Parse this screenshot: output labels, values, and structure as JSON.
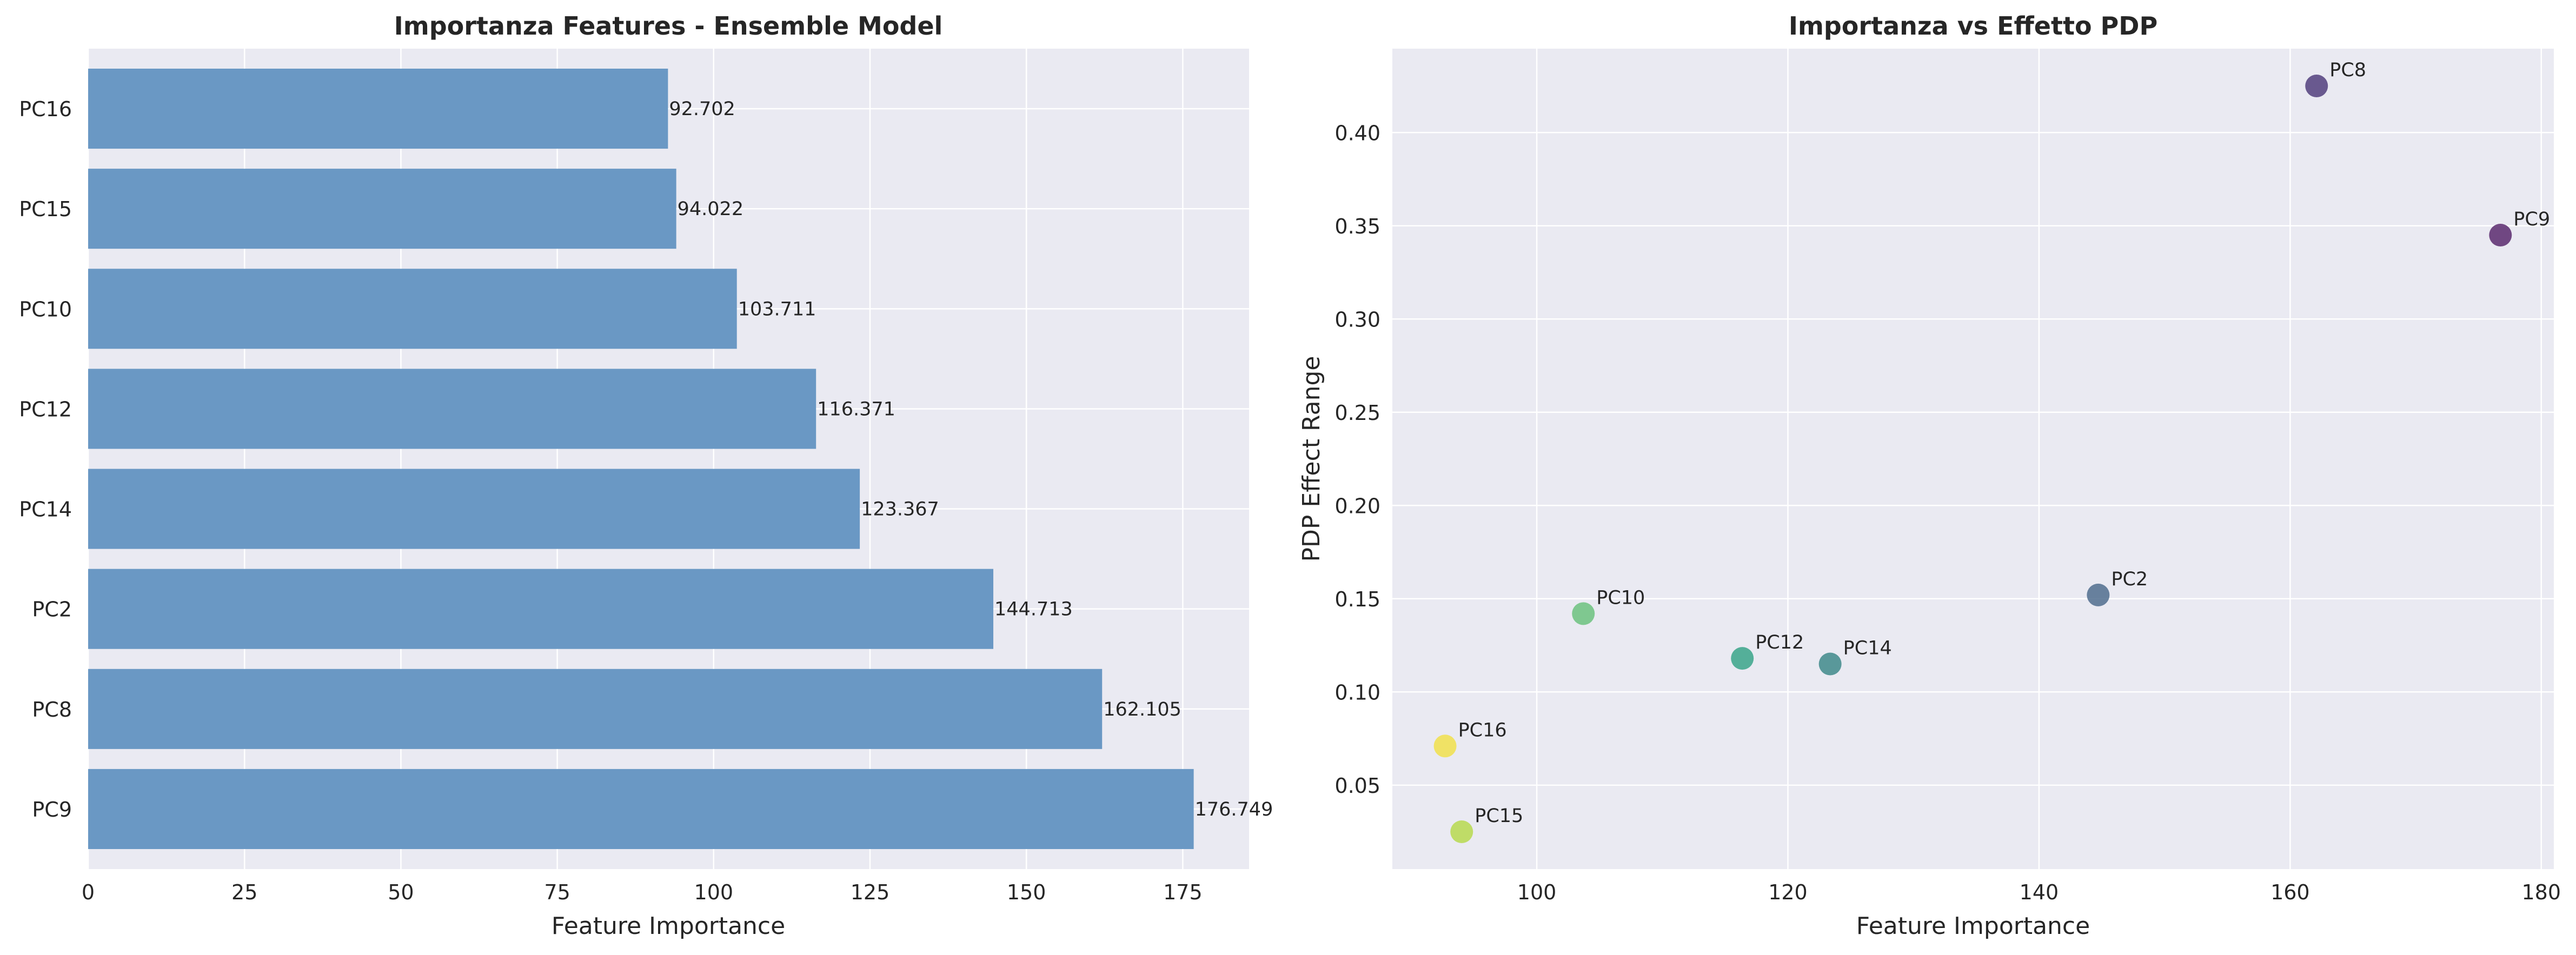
{
  "chart_data": [
    {
      "type": "bar",
      "orientation": "horizontal",
      "title": "Importanza Features - Ensemble Model",
      "xlabel": "Feature Importance",
      "ylabel": "",
      "categories": [
        "PC9",
        "PC8",
        "PC2",
        "PC14",
        "PC12",
        "PC10",
        "PC15",
        "PC16"
      ],
      "values": [
        176.749,
        162.105,
        144.713,
        123.367,
        116.371,
        103.711,
        94.022,
        92.702
      ],
      "value_labels": [
        "176.749",
        "162.105",
        "144.713",
        "123.367",
        "116.371",
        "103.711",
        "94.022",
        "92.702"
      ],
      "xlim": [
        0,
        185.6
      ],
      "xticks": [
        0,
        25,
        50,
        75,
        100,
        125,
        150,
        175
      ],
      "xtick_labels": [
        "0",
        "25",
        "50",
        "75",
        "100",
        "125",
        "150",
        "175"
      ],
      "grid": true,
      "bar_color": "#6a98c4"
    },
    {
      "type": "scatter",
      "title": "Importanza vs Effetto PDP",
      "xlabel": "Feature Importance",
      "ylabel": "PDP Effect Range",
      "points": [
        {
          "label": "PC9",
          "x": 176.749,
          "y": 0.345,
          "color": "#5b2a6e"
        },
        {
          "label": "PC8",
          "x": 162.105,
          "y": 0.425,
          "color": "#52407e"
        },
        {
          "label": "PC2",
          "x": 144.713,
          "y": 0.152,
          "color": "#506d8e"
        },
        {
          "label": "PC14",
          "x": 123.367,
          "y": 0.115,
          "color": "#3f8a8b"
        },
        {
          "label": "PC12",
          "x": 116.371,
          "y": 0.118,
          "color": "#3aa58a"
        },
        {
          "label": "PC10",
          "x": 103.711,
          "y": 0.142,
          "color": "#6cc27f"
        },
        {
          "label": "PC15",
          "x": 94.022,
          "y": 0.025,
          "color": "#b7d94f"
        },
        {
          "label": "PC16",
          "x": 92.702,
          "y": 0.071,
          "color": "#f1e04c"
        }
      ],
      "xlim": [
        88.5,
        181.0
      ],
      "ylim": [
        0.005,
        0.445
      ],
      "xticks": [
        100,
        120,
        140,
        160,
        180
      ],
      "xtick_labels": [
        "100",
        "120",
        "140",
        "160",
        "180"
      ],
      "yticks": [
        0.05,
        0.1,
        0.15,
        0.2,
        0.25,
        0.3,
        0.35,
        0.4
      ],
      "ytick_labels": [
        "0.05",
        "0.10",
        "0.15",
        "0.20",
        "0.25",
        "0.30",
        "0.35",
        "0.40"
      ],
      "grid": true
    }
  ]
}
